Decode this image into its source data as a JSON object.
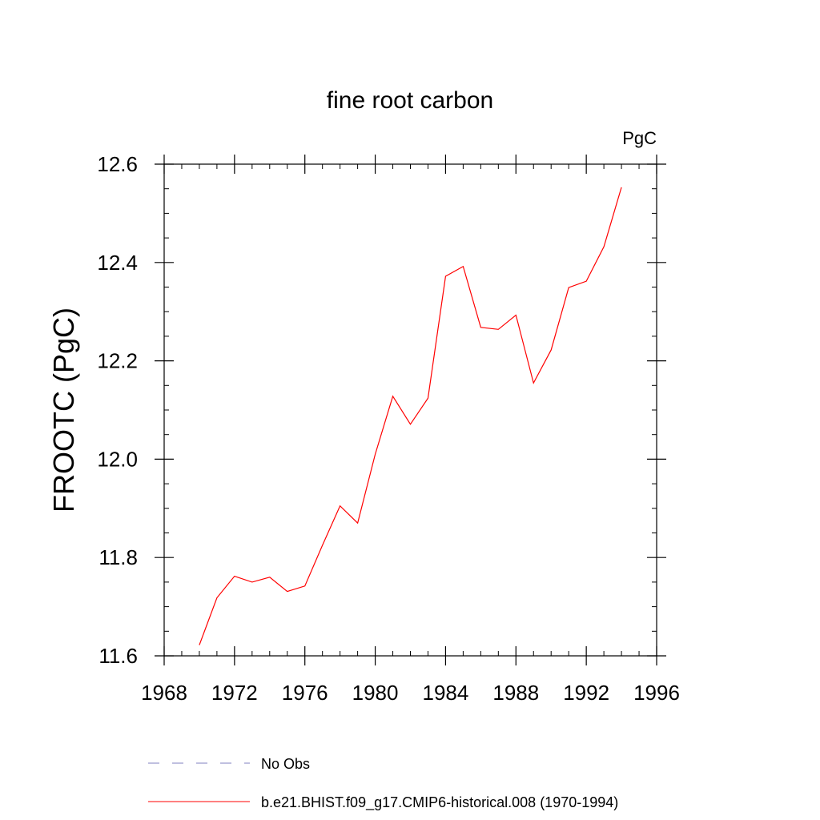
{
  "chart_data": {
    "type": "line",
    "title": "fine root carbon",
    "units": "PgC",
    "ylabel": "FROOTC  (PgC)",
    "xlabel": "",
    "xlim": [
      1968,
      1996
    ],
    "ylim": [
      11.6,
      12.6
    ],
    "x_ticks": [
      1968,
      1972,
      1976,
      1980,
      1984,
      1988,
      1992,
      1996
    ],
    "y_ticks": [
      11.6,
      11.8,
      12.0,
      12.2,
      12.4,
      12.6
    ],
    "x_tick_labels": [
      "1968",
      "1972",
      "1976",
      "1980",
      "1984",
      "1988",
      "1992",
      "1996"
    ],
    "y_tick_labels": [
      "11.6",
      "11.8",
      "12.0",
      "12.2",
      "12.4",
      "12.6"
    ],
    "grid": false,
    "legend_position": "bottom",
    "series": [
      {
        "name": "b.e21.BHIST.f09_g17.CMIP6-historical.008 (1970-1994)",
        "color": "#ff0000",
        "style": "solid",
        "x": [
          1970,
          1971,
          1972,
          1973,
          1974,
          1975,
          1976,
          1977,
          1978,
          1979,
          1980,
          1981,
          1982,
          1983,
          1984,
          1985,
          1986,
          1987,
          1988,
          1989,
          1990,
          1991,
          1992,
          1993,
          1994
        ],
        "y": [
          11.622,
          11.718,
          11.762,
          11.75,
          11.76,
          11.731,
          11.742,
          11.825,
          11.905,
          11.87,
          12.01,
          12.128,
          12.071,
          12.124,
          12.372,
          12.392,
          12.268,
          12.264,
          12.293,
          12.155,
          12.222,
          12.349,
          12.362,
          12.432,
          12.553
        ]
      }
    ],
    "legend": [
      {
        "label": "No Obs",
        "color": "#8080c0",
        "style": "dashed"
      },
      {
        "label": "b.e21.BHIST.f09_g17.CMIP6-historical.008 (1970-1994)",
        "color": "#ff0000",
        "style": "solid"
      }
    ]
  }
}
